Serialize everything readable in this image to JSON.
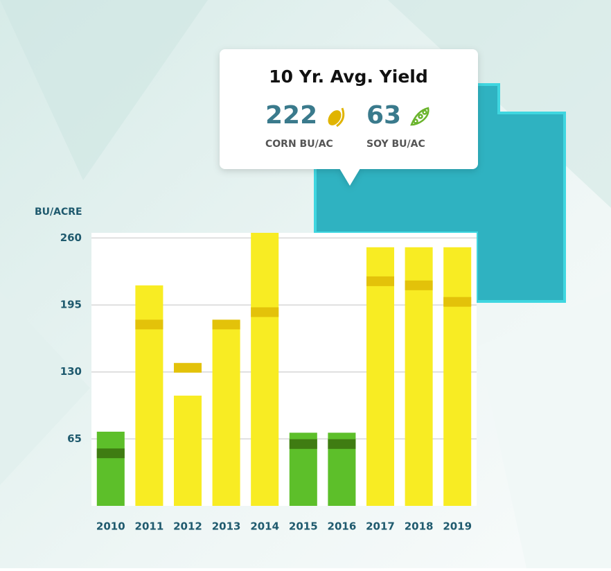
{
  "chart_data": {
    "type": "bar",
    "y_label": "BU/ACRE",
    "categories": [
      "2010",
      "2011",
      "2012",
      "2013",
      "2014",
      "2015",
      "2016",
      "2017",
      "2018",
      "2019"
    ],
    "values": [
      72,
      214,
      107,
      180,
      265,
      71,
      71,
      251,
      251,
      251
    ],
    "colors": [
      "#5dbf2a",
      "#f8ec23",
      "#f8ec23",
      "#f8ec23",
      "#f8ec23",
      "#5dbf2a",
      "#5dbf2a",
      "#f8ec23",
      "#f8ec23",
      "#f8ec23"
    ],
    "averages": [
      51,
      176,
      134,
      176,
      188,
      60,
      60,
      218,
      214,
      198
    ],
    "average_colors": [
      "#3f7c12",
      "#e3c20a",
      "#e3c20a",
      "#e3c20a",
      "#e3c20a",
      "#3f7c12",
      "#3f7c12",
      "#e3c20a",
      "#e3c20a",
      "#e3c20a"
    ],
    "ylim": [
      0,
      265
    ],
    "yticks": [
      65,
      130,
      195,
      260
    ],
    "grid": true
  },
  "callout": {
    "title": "10 Yr. Avg. Yield",
    "corn_value": "222",
    "corn_label": "CORN BU/AC",
    "soy_value": "63",
    "soy_label": "SOY BU/AC"
  }
}
